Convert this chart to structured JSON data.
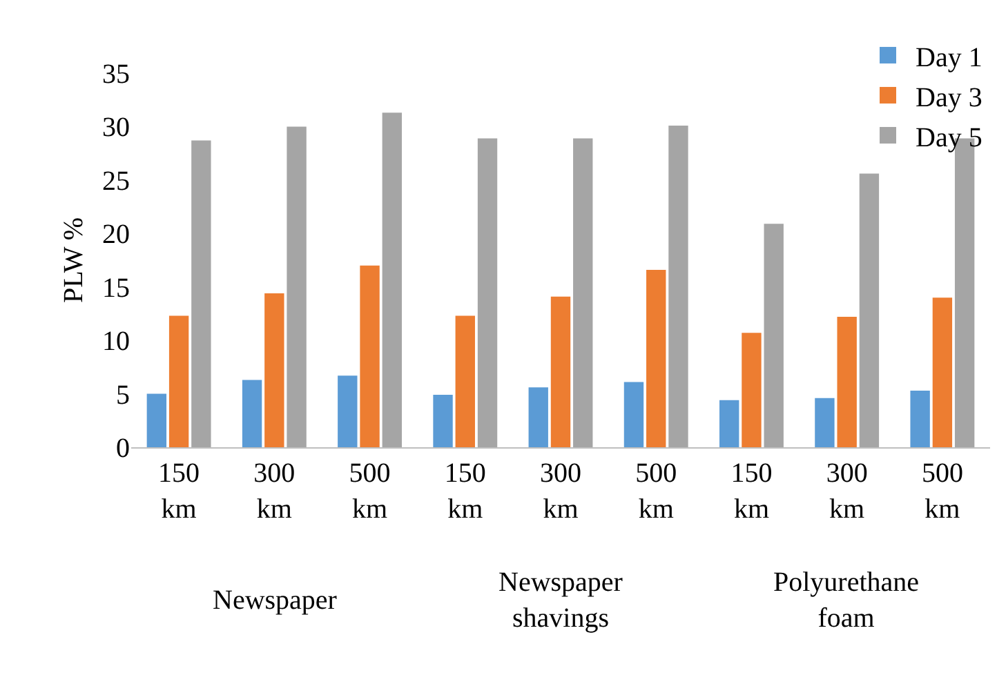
{
  "chart_data": {
    "type": "bar",
    "ylabel": "PLW %",
    "categories": [
      "150 km",
      "300 km",
      "500 km",
      "150 km",
      "300 km",
      "500 km",
      "150 km",
      "300 km",
      "500 km"
    ],
    "series": [
      {
        "name": "Day 1",
        "color": "#5b9bd5",
        "values": [
          5.0,
          6.3,
          6.7,
          4.9,
          5.6,
          6.1,
          4.4,
          4.6,
          5.3
        ]
      },
      {
        "name": "Day 3",
        "color": "#ed7d31",
        "values": [
          12.3,
          14.4,
          17.0,
          12.3,
          14.1,
          16.6,
          10.7,
          12.2,
          14.0
        ]
      },
      {
        "name": "Day 5",
        "color": "#a5a5a5",
        "values": [
          28.7,
          30.0,
          31.3,
          28.9,
          28.9,
          30.1,
          20.9,
          25.6,
          28.9
        ]
      }
    ],
    "annotations": [
      "Newspaper",
      "Newspaper shavings",
      "Polyurethane foam"
    ],
    "ylim": [
      0,
      35
    ],
    "yticks": [
      0,
      5,
      10,
      15,
      20,
      25,
      30,
      35
    ],
    "grid": false,
    "legend": "top right"
  }
}
